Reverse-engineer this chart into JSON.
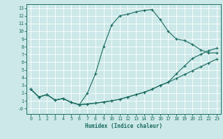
{
  "xlabel": "Humidex (Indice chaleur)",
  "bg_color": "#cce8e8",
  "grid_color": "#ffffff",
  "line_color": "#1a6b60",
  "xlim": [
    -0.5,
    23.5
  ],
  "ylim": [
    -0.7,
    13.5
  ],
  "xticks": [
    0,
    1,
    2,
    3,
    4,
    5,
    6,
    7,
    8,
    9,
    10,
    11,
    12,
    13,
    14,
    15,
    16,
    17,
    18,
    19,
    20,
    21,
    22,
    23
  ],
  "yticks": [
    0,
    1,
    2,
    3,
    4,
    5,
    6,
    7,
    8,
    9,
    10,
    11,
    12,
    13
  ],
  "line1_x": [
    0,
    1,
    2,
    3,
    4,
    5,
    6,
    7,
    8,
    9,
    10,
    11,
    12,
    13,
    14,
    15,
    16,
    17,
    18,
    19,
    20,
    21,
    22,
    23
  ],
  "line1_y": [
    2.5,
    1.5,
    1.8,
    1.1,
    1.3,
    0.8,
    0.5,
    0.6,
    0.7,
    0.85,
    1.0,
    1.2,
    1.5,
    1.8,
    2.1,
    2.5,
    3.0,
    3.4,
    3.9,
    4.4,
    4.9,
    5.4,
    5.9,
    6.4
  ],
  "line2_x": [
    0,
    1,
    2,
    3,
    4,
    5,
    6,
    7,
    8,
    9,
    10,
    11,
    12,
    13,
    14,
    15,
    16,
    17,
    18,
    19,
    20,
    21,
    22,
    23
  ],
  "line2_y": [
    2.5,
    1.5,
    1.8,
    1.1,
    1.3,
    0.8,
    0.5,
    2.0,
    4.5,
    8.0,
    10.8,
    12.0,
    12.2,
    12.5,
    12.7,
    12.8,
    11.5,
    10.0,
    9.0,
    8.8,
    8.3,
    7.6,
    7.2,
    7.2
  ],
  "line3_x": [
    0,
    1,
    2,
    3,
    4,
    5,
    6,
    7,
    8,
    9,
    10,
    11,
    12,
    13,
    14,
    15,
    16,
    17,
    18,
    19,
    20,
    21,
    22,
    23
  ],
  "line3_y": [
    2.5,
    1.5,
    1.8,
    1.1,
    1.3,
    0.8,
    0.5,
    0.6,
    0.7,
    0.85,
    1.0,
    1.2,
    1.5,
    1.8,
    2.1,
    2.5,
    3.0,
    3.4,
    4.5,
    5.5,
    6.5,
    7.0,
    7.5,
    7.8
  ]
}
